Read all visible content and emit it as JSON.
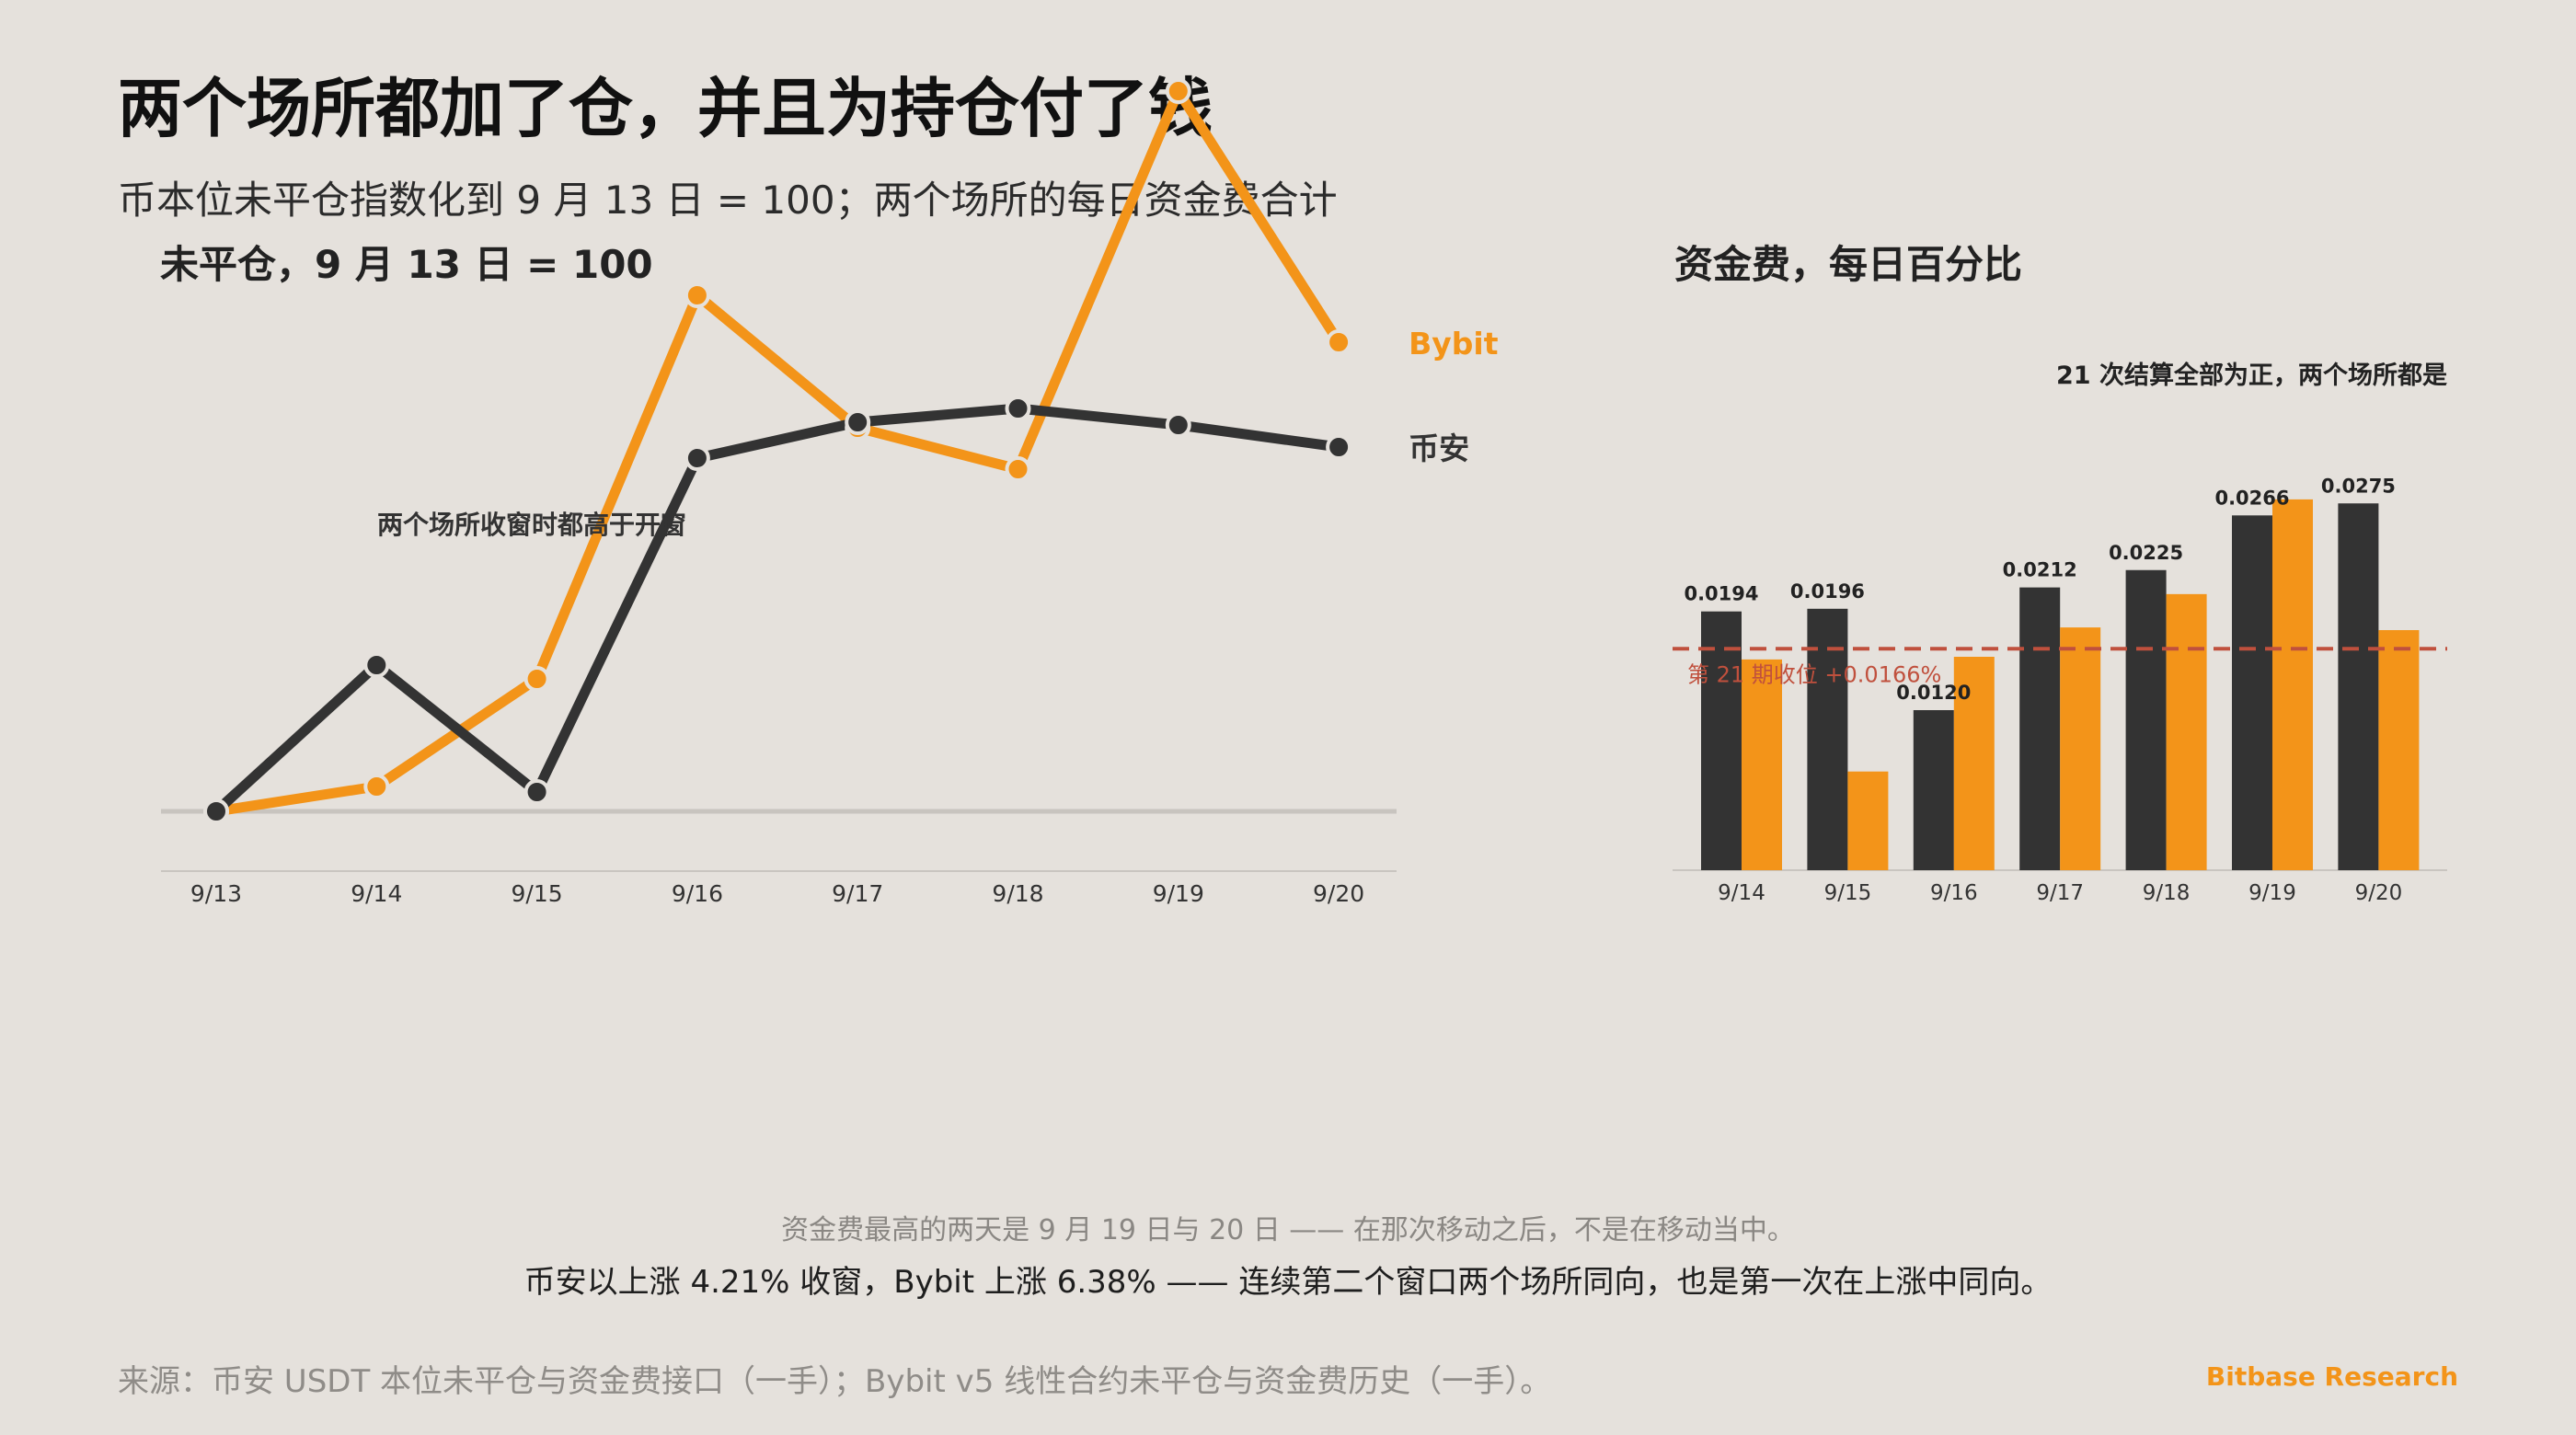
{
  "header": {
    "title": "两个场所都加了仓，并且为持仓付了钱",
    "subtitle": "币本位未平仓指数化到 9 月 13 日 = 100；两个场所的每日资金费合计"
  },
  "colors": {
    "bybit": "#f39419",
    "binance": "#333333",
    "reference": "#c0503d",
    "background": "#e5e1dc"
  },
  "chart_data": [
    {
      "type": "line",
      "title": "未平仓，9 月 13 日 = 100",
      "categories": [
        "9/13",
        "9/14",
        "9/15",
        "9/16",
        "9/17",
        "9/18",
        "9/19",
        "9/20"
      ],
      "series": [
        {
          "name": "Bybit",
          "values": [
            100.0,
            100.45,
            102.4,
            109.35,
            106.95,
            106.2,
            113.05,
            108.5
          ]
        },
        {
          "name": "币安",
          "values": [
            100.0,
            102.65,
            100.35,
            106.4,
            107.05,
            107.3,
            107.0,
            106.6
          ]
        }
      ],
      "ylim": [
        97.5,
        114.5
      ],
      "baseline": 100,
      "annotations": [
        {
          "text": "两个场所收窗时都高于开窗"
        }
      ],
      "grid": false
    },
    {
      "type": "bar",
      "title": "资金费，每日百分比",
      "note": "21 次结算全部为正，两个场所都是",
      "categories": [
        "9/14",
        "9/15",
        "9/16",
        "9/17",
        "9/18",
        "9/19",
        "9/20"
      ],
      "series": [
        {
          "name": "币安",
          "values": [
            0.0194,
            0.0196,
            0.012,
            0.0212,
            0.0225,
            0.0266,
            0.0275
          ],
          "labels": [
            "0.0194",
            "0.0196",
            "0.0120",
            "0.0212",
            "0.0225",
            "0.0266",
            "0.0275"
          ]
        },
        {
          "name": "Bybit",
          "values": [
            0.0158,
            0.0074,
            0.016,
            0.0182,
            0.0207,
            0.0278,
            0.018
          ]
        }
      ],
      "reference_line": {
        "value": 0.0166,
        "label": "第 21 期收位 +0.0166%"
      },
      "ylim": [
        0,
        0.0295
      ]
    }
  ],
  "footer": {
    "note1": "资金费最高的两天是 9 月 19 日与 20 日 —— 在那次移动之后，不是在移动当中。",
    "note2": "币安以上涨 4.21% 收窗，Bybit 上涨 6.38% —— 连续第二个窗口两个场所同向，也是第一次在上涨中同向。",
    "source": "来源：币安 USDT 本位未平仓与资金费接口（一手）；Bybit v5 线性合约未平仓与资金费历史（一手）。",
    "brand": "Bitbase Research"
  }
}
